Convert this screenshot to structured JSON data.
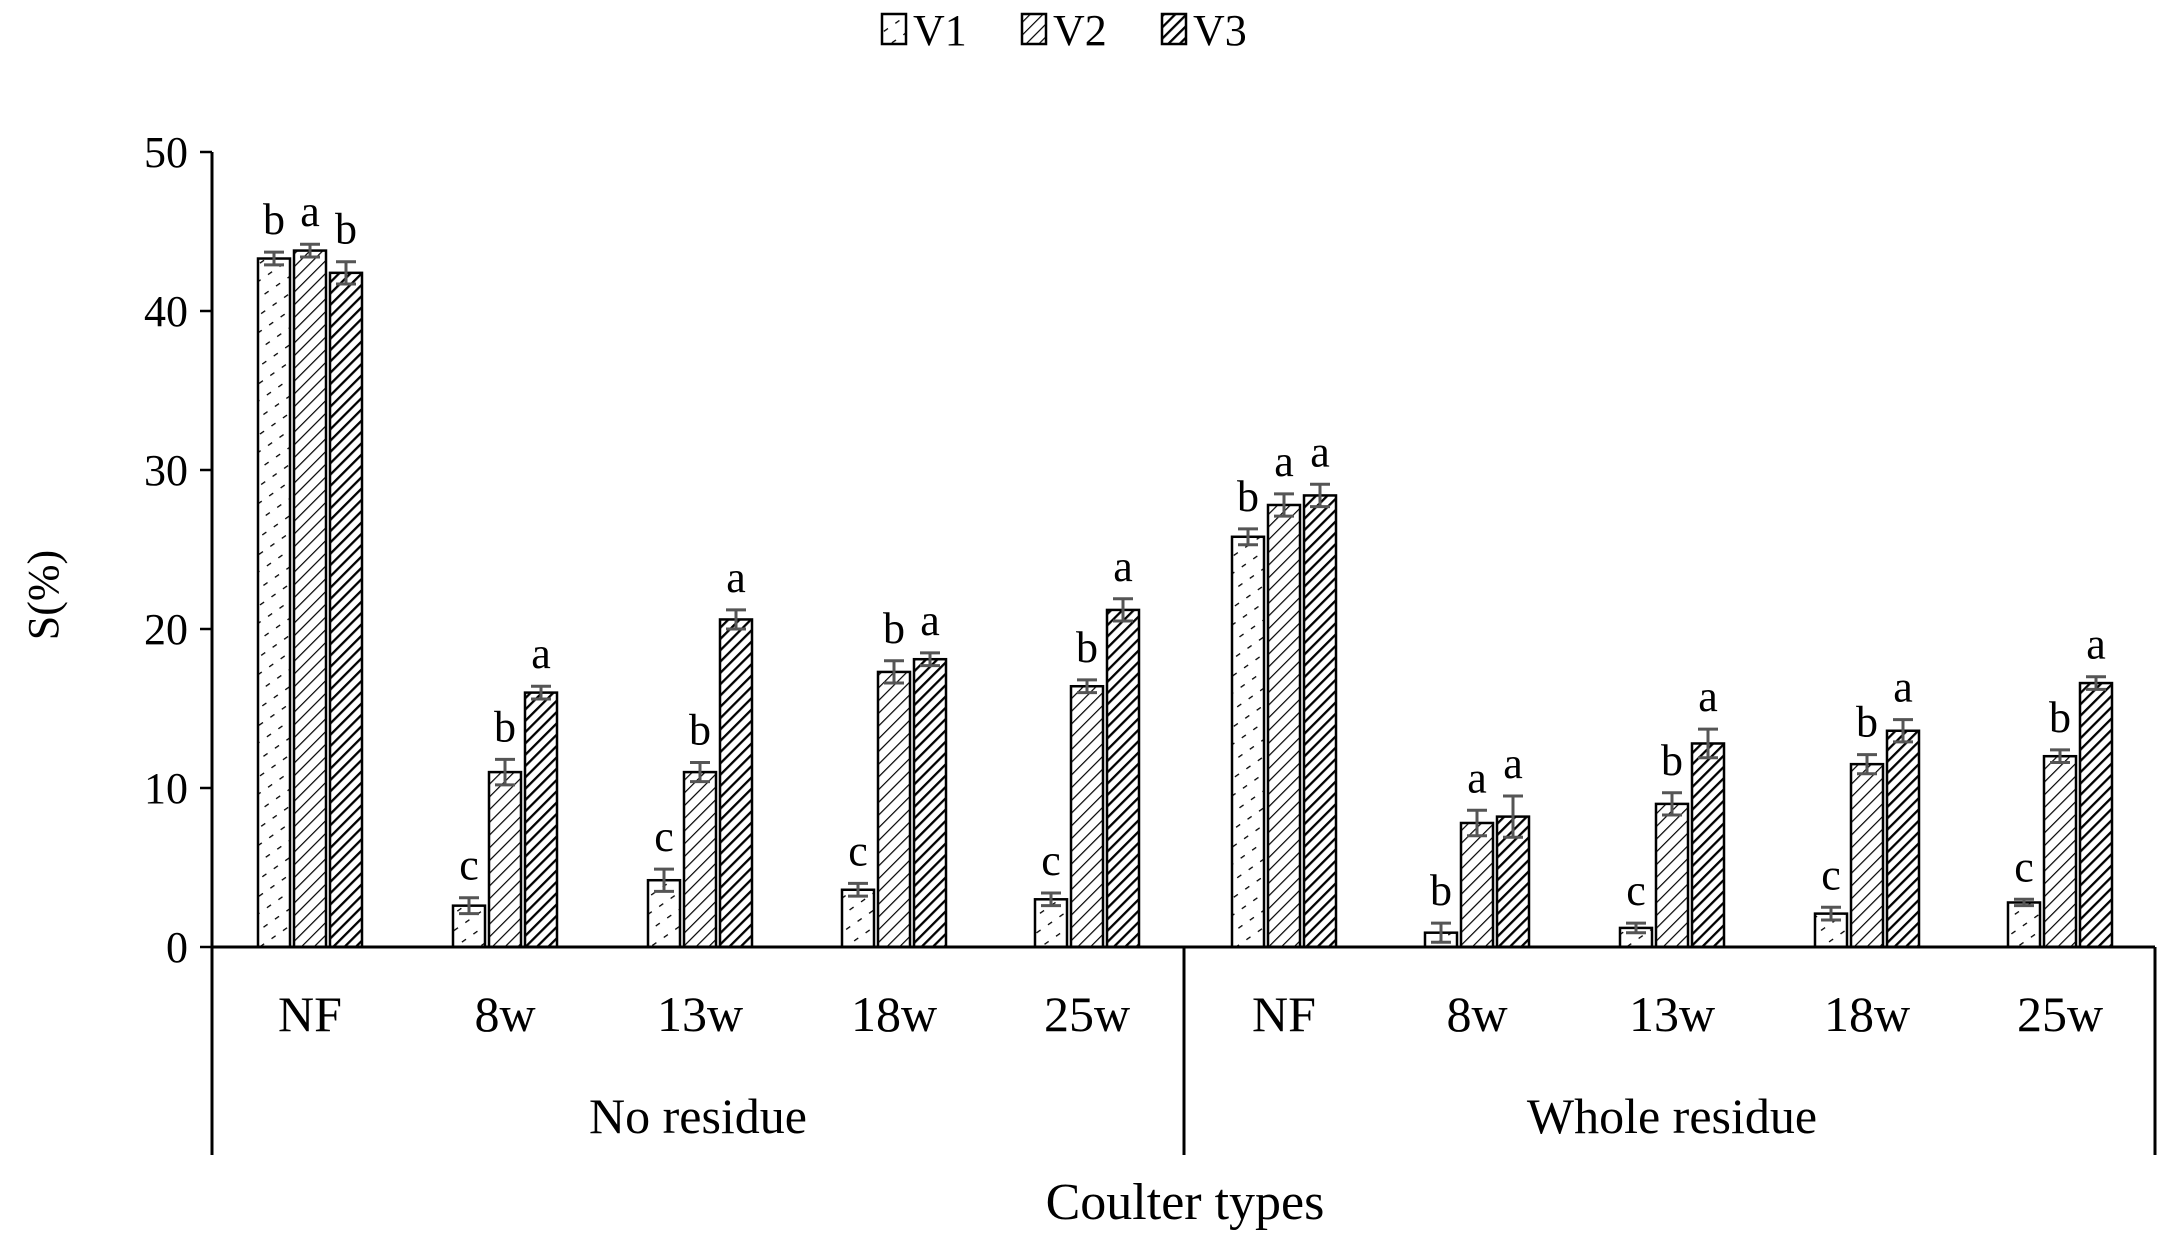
{
  "chart_data": {
    "type": "bar",
    "title": "",
    "ylabel": "S(%)",
    "xlabel": "Coulter types",
    "ylim": [
      0,
      50
    ],
    "yticks": [
      0,
      10,
      20,
      30,
      40,
      50
    ],
    "legend": {
      "position": "top-center",
      "entries": [
        "V1",
        "V2",
        "V3"
      ]
    },
    "groups": [
      {
        "label": "No residue",
        "categories": [
          "NF",
          "8w",
          "13w",
          "18w",
          "25w"
        ]
      },
      {
        "label": "Whole residue",
        "categories": [
          "NF",
          "8w",
          "13w",
          "18w",
          "25w"
        ]
      }
    ],
    "series": [
      {
        "name": "V1",
        "values": [
          43.3,
          2.6,
          4.2,
          3.6,
          3.0,
          25.8,
          0.9,
          1.2,
          2.1,
          2.8
        ],
        "errors": [
          0.4,
          0.5,
          0.7,
          0.4,
          0.4,
          0.5,
          0.6,
          0.3,
          0.4,
          0.2
        ],
        "letters": [
          "b",
          "c",
          "c",
          "c",
          "c",
          "b",
          "b",
          "c",
          "c",
          "c"
        ]
      },
      {
        "name": "V2",
        "values": [
          43.8,
          11.0,
          11.0,
          17.3,
          16.4,
          27.8,
          7.8,
          9.0,
          11.5,
          12.0
        ],
        "errors": [
          0.4,
          0.8,
          0.6,
          0.7,
          0.4,
          0.7,
          0.8,
          0.7,
          0.6,
          0.4
        ],
        "letters": [
          "a",
          "b",
          "b",
          "b",
          "b",
          "a",
          "a",
          "b",
          "b",
          "b"
        ]
      },
      {
        "name": "V3",
        "values": [
          42.4,
          16.0,
          20.6,
          18.1,
          21.2,
          28.4,
          8.2,
          12.8,
          13.6,
          16.6
        ],
        "errors": [
          0.7,
          0.4,
          0.6,
          0.4,
          0.7,
          0.7,
          1.3,
          0.9,
          0.7,
          0.4
        ],
        "letters": [
          "b",
          "a",
          "a",
          "a",
          "a",
          "a",
          "a",
          "a",
          "a",
          "a"
        ]
      }
    ]
  }
}
